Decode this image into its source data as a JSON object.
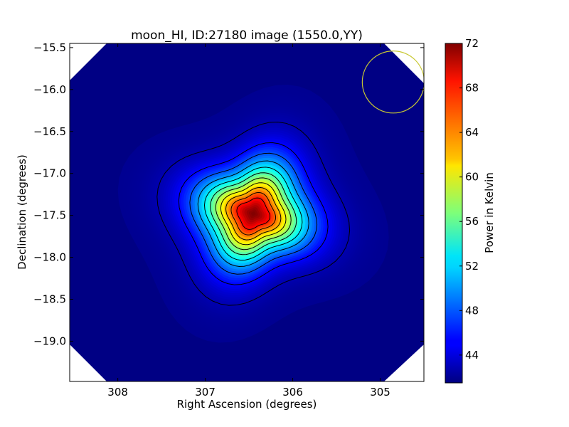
{
  "chart_data": {
    "type": "heatmap",
    "title": "moon_HI, ID:27180 image (1550.0,YY)",
    "xlabel": "Right Ascension (degrees)",
    "ylabel": "Declination (degrees)",
    "colorbar_label": "Power in Kelvin",
    "colormap": "jet",
    "xlim": [
      308.55,
      304.5
    ],
    "ylim": [
      -19.48,
      -15.45
    ],
    "x_ticks": [
      308,
      307,
      306,
      305
    ],
    "x_tick_labels": [
      "308",
      "307",
      "306",
      "305"
    ],
    "y_ticks": [
      -15.5,
      -16.0,
      -16.5,
      -17.0,
      -17.5,
      -18.0,
      -18.5,
      -19.0
    ],
    "y_tick_labels": [
      "−15.5",
      "−16.0",
      "−16.5",
      "−17.0",
      "−17.5",
      "−18.0",
      "−18.5",
      "−19.0"
    ],
    "colorbar_range": [
      41.5,
      72.0
    ],
    "colorbar_ticks": [
      44,
      48,
      52,
      56,
      60,
      64,
      68,
      72
    ],
    "colorbar_tick_labels": [
      "44",
      "48",
      "52",
      "56",
      "60",
      "64",
      "68",
      "72"
    ],
    "peak": {
      "ra": 306.45,
      "dec": -17.48,
      "value": 72
    },
    "background_level": 42,
    "contour_levels": [
      43,
      45.5,
      48,
      50.5,
      53,
      55.5,
      58,
      60.5,
      63,
      65.5,
      68
    ],
    "beam_marker": {
      "ra": 304.85,
      "dec": -15.91,
      "radius_deg": 0.37,
      "color": "#c8c832"
    }
  }
}
